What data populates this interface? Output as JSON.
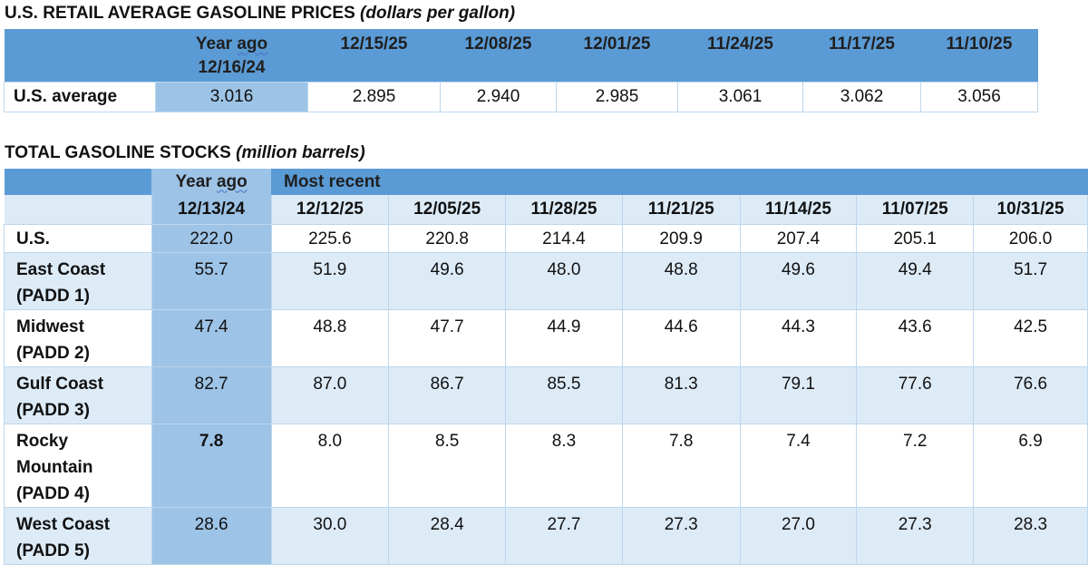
{
  "prices": {
    "title": "U.S. RETAIL AVERAGE GASOLINE PRICES",
    "unit": "(dollars per gallon)",
    "year_ago_line1_word1": "Year",
    "year_ago_line1_word2": "ago",
    "year_ago_date": "12/16/24",
    "columns": [
      "12/15/25",
      "12/08/25",
      "12/01/25",
      "11/24/25",
      "11/17/25",
      "11/10/25"
    ],
    "row_label": "U.S. average",
    "year_ago_value": "3.016",
    "values": [
      "2.895",
      "2.940",
      "2.985",
      "3.061",
      "3.062",
      "3.056"
    ]
  },
  "stocks": {
    "title": "TOTAL GASOLINE STOCKS",
    "unit": "(million barrels)",
    "year_ago_word1": "Year",
    "year_ago_word2": "ago",
    "most_recent": "Most recent",
    "year_ago_date": "12/13/24",
    "columns": [
      "12/12/25",
      "12/05/25",
      "11/28/25",
      "11/21/25",
      "11/14/25",
      "11/07/25",
      "10/31/25"
    ],
    "rows": [
      {
        "label": "U.S.",
        "year_ago": "222.0",
        "values": [
          "225.6",
          "220.8",
          "214.4",
          "209.9",
          "207.4",
          "205.1",
          "206.0"
        ]
      },
      {
        "label_line1": "East Coast",
        "label_line2": "(PADD 1)",
        "year_ago": "55.7",
        "values": [
          "51.9",
          "49.6",
          "48.0",
          "48.8",
          "49.6",
          "49.4",
          "51.7"
        ]
      },
      {
        "label_line1": "Midwest",
        "label_line2": "(PADD 2)",
        "year_ago": "47.4",
        "values": [
          "48.8",
          "47.7",
          "44.9",
          "44.6",
          "44.3",
          "43.6",
          "42.5"
        ]
      },
      {
        "label_line1": "Gulf Coast",
        "label_line2": "(PADD 3)",
        "year_ago": "82.7",
        "values": [
          "87.0",
          "86.7",
          "85.5",
          "81.3",
          "79.1",
          "77.6",
          "76.6"
        ]
      },
      {
        "label_line1": "Rocky",
        "label_line2": "Mountain",
        "label_line3": "(PADD 4)",
        "year_ago": "7.8",
        "values": [
          "8.0",
          "8.5",
          "8.3",
          "7.8",
          "7.4",
          "7.2",
          "6.9"
        ]
      },
      {
        "label_line1": "West Coast",
        "label_line2": "(PADD 5)",
        "year_ago": "28.6",
        "values": [
          "30.0",
          "28.4",
          "27.7",
          "27.3",
          "27.0",
          "27.3",
          "28.3"
        ]
      }
    ]
  }
}
